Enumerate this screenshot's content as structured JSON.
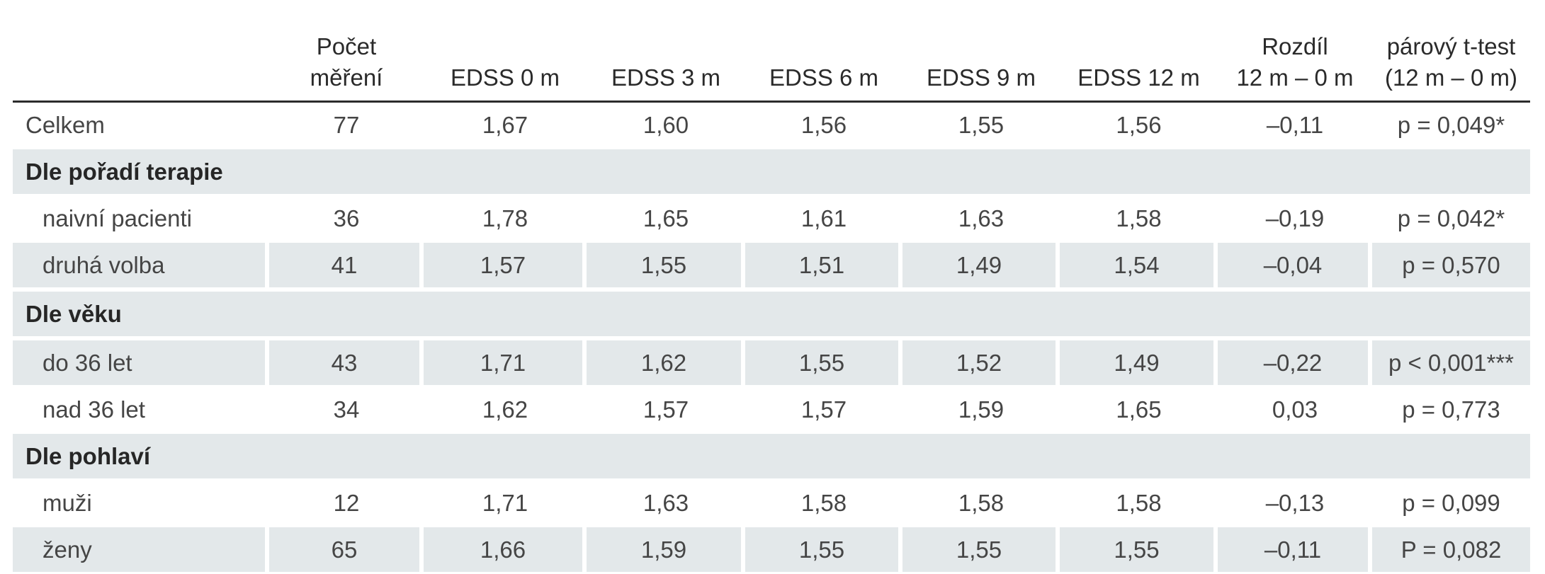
{
  "table": {
    "headers": {
      "label": "",
      "count_line1": "Počet",
      "count_line2": "měření",
      "edss0": "EDSS 0 m",
      "edss3": "EDSS 3 m",
      "edss6": "EDSS 6 m",
      "edss9": "EDSS 9 m",
      "edss12": "EDSS 12 m",
      "diff_line1": "Rozdíl",
      "diff_line2": "12 m – 0 m",
      "ttest_line1": "párový t-test",
      "ttest_line2": "(12 m – 0 m)"
    },
    "total": {
      "label": "Celkem",
      "count": "77",
      "edss0": "1,67",
      "edss3": "1,60",
      "edss6": "1,56",
      "edss9": "1,55",
      "edss12": "1,56",
      "diff": "–0,11",
      "ttest": "p = 0,049*"
    },
    "sections": [
      {
        "title": "Dle pořadí terapie",
        "rows": [
          {
            "label": "naivní pacienti",
            "count": "36",
            "edss0": "1,78",
            "edss3": "1,65",
            "edss6": "1,61",
            "edss9": "1,63",
            "edss12": "1,58",
            "diff": "–0,19",
            "ttest": "p = 0,042*"
          },
          {
            "label": "druhá volba",
            "count": "41",
            "edss0": "1,57",
            "edss3": "1,55",
            "edss6": "1,51",
            "edss9": "1,49",
            "edss12": "1,54",
            "diff": "–0,04",
            "ttest": "p = 0,570"
          }
        ]
      },
      {
        "title": "Dle věku",
        "rows": [
          {
            "label": "do 36 let",
            "count": "43",
            "edss0": "1,71",
            "edss3": "1,62",
            "edss6": "1,55",
            "edss9": "1,52",
            "edss12": "1,49",
            "diff": "–0,22",
            "ttest": "p < 0,001***"
          },
          {
            "label": "nad 36 let",
            "count": "34",
            "edss0": "1,62",
            "edss3": "1,57",
            "edss6": "1,57",
            "edss9": "1,59",
            "edss12": "1,65",
            "diff": "0,03",
            "ttest": "p = 0,773"
          }
        ]
      },
      {
        "title": "Dle pohlaví",
        "rows": [
          {
            "label": "muži",
            "count": "12",
            "edss0": "1,71",
            "edss3": "1,63",
            "edss6": "1,58",
            "edss9": "1,58",
            "edss12": "1,58",
            "diff": "–0,13",
            "ttest": "p = 0,099"
          },
          {
            "label": "ženy",
            "count": "65",
            "edss0": "1,66",
            "edss3": "1,59",
            "edss6": "1,55",
            "edss9": "1,55",
            "edss12": "1,55",
            "diff": "–0,11",
            "ttest": "P = 0,082"
          }
        ]
      }
    ]
  }
}
